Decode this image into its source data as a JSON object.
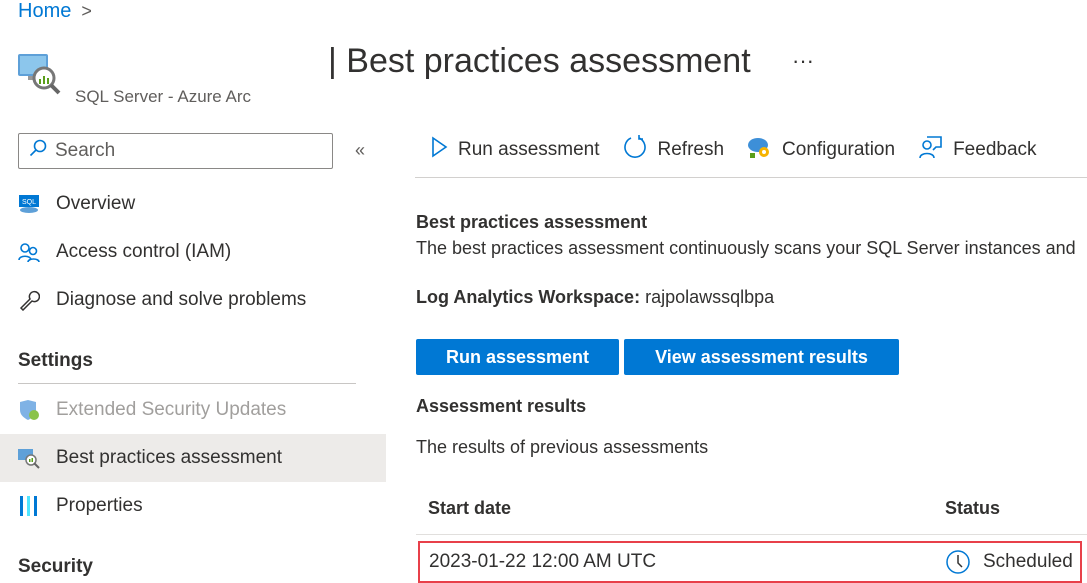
{
  "breadcrumb": {
    "home": "Home",
    "separator": ">"
  },
  "header": {
    "title": "| Best practices assessment",
    "subtitle": "SQL Server - Azure Arc",
    "more": "···",
    "icon": "sql-server-bpa-icon"
  },
  "sidebar": {
    "search_placeholder": "Search",
    "collapse": "«",
    "items": [
      {
        "label": "Overview",
        "icon": "sql-icon"
      },
      {
        "label": "Access control (IAM)",
        "icon": "people-icon"
      },
      {
        "label": "Diagnose and solve problems",
        "icon": "wrench-icon"
      }
    ],
    "settings_header": "Settings",
    "settings_items": [
      {
        "label": "Extended Security Updates",
        "icon": "shield-refresh-icon",
        "disabled": true
      },
      {
        "label": "Best practices assessment",
        "icon": "bpa-icon",
        "selected": true
      },
      {
        "label": "Properties",
        "icon": "properties-icon"
      }
    ],
    "security_header": "Security"
  },
  "toolbar": {
    "run": "Run assessment",
    "refresh": "Refresh",
    "configuration": "Configuration",
    "feedback": "Feedback"
  },
  "main": {
    "heading": "Best practices assessment",
    "description": "The best practices assessment continuously scans your SQL Server instances and",
    "workspace_label": "Log Analytics Workspace:",
    "workspace_value": "rajpolawssqlbpa",
    "run_button": "Run assessment",
    "view_button": "View assessment results",
    "results_heading": "Assessment results",
    "results_desc": "The results of previous assessments",
    "columns": [
      "Start date",
      "Status"
    ],
    "rows": [
      {
        "start_date": "2023-01-22 12:00 AM UTC",
        "status": "Scheduled",
        "status_icon": "clock-icon"
      }
    ]
  },
  "colors": {
    "accent": "#0078d4",
    "highlight_border": "#e8404a",
    "selected_bg": "#edebe9"
  }
}
